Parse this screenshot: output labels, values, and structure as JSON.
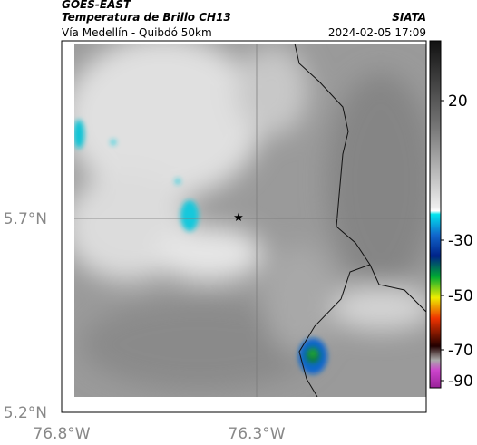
{
  "header": {
    "source": "GOES-EAST",
    "title": "Temperatura de Brillo CH13",
    "brand": "SIATA",
    "subtitle": "Vía Medellín - Quibdó 50km",
    "datetime": "2024-02-05 17:09"
  },
  "map": {
    "lat_labels": [
      "5.7°N",
      "5.2°N"
    ],
    "lon_labels": [
      "76.8°W",
      "76.3°W"
    ]
  },
  "colorbar": {
    "ticks": [
      "20",
      "-30",
      "-50",
      "-70",
      "-90"
    ]
  }
}
